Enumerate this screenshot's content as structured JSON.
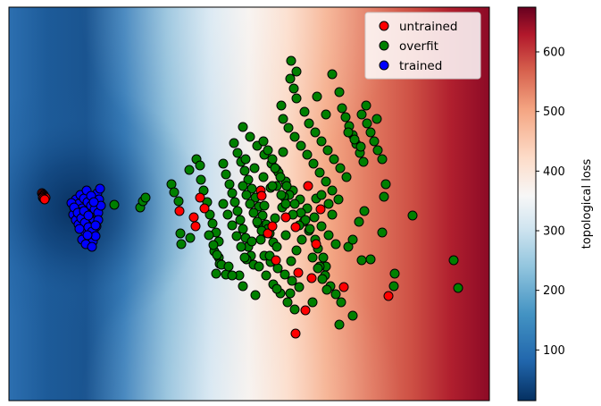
{
  "chart_data": {
    "type": "scatter",
    "title": "",
    "xlabel": "",
    "ylabel": "",
    "background": "topological loss landscape (heatmap, RdBu_r)",
    "legend": {
      "placement": "top-right",
      "entries": [
        {
          "label": "untrained",
          "color": "#ff0000"
        },
        {
          "label": "overfit",
          "color": "#008000"
        },
        {
          "label": "trained",
          "color": "#0000ff"
        }
      ]
    },
    "colorbar": {
      "label": "topological loss",
      "range": [
        15,
        675
      ],
      "ticks": [
        "100",
        "200",
        "300",
        "400",
        "500",
        "600"
      ],
      "colormap": "RdBu_r"
    },
    "axes": {
      "xlim": [
        0,
        538
      ],
      "ylim": [
        0,
        440
      ],
      "xticks": false,
      "yticks": false
    },
    "series": [
      {
        "name": "untrained",
        "color": "#ff0000",
        "points": [
          [
            37,
            208
          ],
          [
            38,
            209
          ],
          [
            39,
            210
          ],
          [
            39,
            211
          ],
          [
            40,
            212
          ],
          [
            41,
            213
          ],
          [
            38,
            213
          ],
          [
            39,
            214
          ],
          [
            40,
            215
          ],
          [
            191,
            228
          ],
          [
            207,
            235
          ],
          [
            209,
            245
          ],
          [
            214,
            213
          ],
          [
            219,
            225
          ],
          [
            282,
            205
          ],
          [
            283,
            211
          ],
          [
            290,
            253
          ],
          [
            295,
            245
          ],
          [
            299,
            283
          ],
          [
            310,
            235
          ],
          [
            321,
            246
          ],
          [
            335,
            200
          ],
          [
            344,
            265
          ],
          [
            339,
            303
          ],
          [
            349,
            226
          ],
          [
            324,
            297
          ],
          [
            332,
            339
          ],
          [
            321,
            365
          ],
          [
            375,
            313
          ],
          [
            425,
            323
          ]
        ]
      },
      {
        "name": "overfit",
        "color": "#008000",
        "points": [
          [
            118,
            221
          ],
          [
            147,
            224
          ],
          [
            150,
            217
          ],
          [
            153,
            213
          ],
          [
            182,
            198
          ],
          [
            185,
            207
          ],
          [
            190,
            217
          ],
          [
            202,
            182
          ],
          [
            192,
            253
          ],
          [
            193,
            265
          ],
          [
            203,
            258
          ],
          [
            210,
            170
          ],
          [
            214,
            177
          ],
          [
            215,
            193
          ],
          [
            218,
            205
          ],
          [
            222,
            218
          ],
          [
            225,
            232
          ],
          [
            228,
            242
          ],
          [
            232,
            252
          ],
          [
            235,
            262
          ],
          [
            230,
            273
          ],
          [
            235,
            280
          ],
          [
            236,
            287
          ],
          [
            232,
            298
          ],
          [
            240,
            175
          ],
          [
            243,
            187
          ],
          [
            247,
            198
          ],
          [
            250,
            208
          ],
          [
            253,
            218
          ],
          [
            256,
            228
          ],
          [
            259,
            238
          ],
          [
            262,
            248
          ],
          [
            265,
            258
          ],
          [
            268,
            268
          ],
          [
            271,
            278
          ],
          [
            274,
            288
          ],
          [
            252,
            152
          ],
          [
            256,
            163
          ],
          [
            260,
            173
          ],
          [
            264,
            183
          ],
          [
            268,
            193
          ],
          [
            272,
            203
          ],
          [
            276,
            213
          ],
          [
            280,
            223
          ],
          [
            284,
            233
          ],
          [
            288,
            243
          ],
          [
            292,
            253
          ],
          [
            296,
            263
          ],
          [
            258,
            300
          ],
          [
            266,
            282
          ],
          [
            272,
            262
          ],
          [
            279,
            242
          ],
          [
            286,
            222
          ],
          [
            293,
            202
          ],
          [
            300,
            182
          ],
          [
            307,
            162
          ],
          [
            262,
            134
          ],
          [
            270,
            145
          ],
          [
            278,
            155
          ],
          [
            286,
            165
          ],
          [
            294,
            175
          ],
          [
            302,
            185
          ],
          [
            310,
            195
          ],
          [
            318,
            205
          ],
          [
            326,
            215
          ],
          [
            334,
            225
          ],
          [
            342,
            235
          ],
          [
            350,
            245
          ],
          [
            358,
            255
          ],
          [
            366,
            265
          ],
          [
            285,
            150
          ],
          [
            290,
            160
          ],
          [
            295,
            170
          ],
          [
            298,
            180
          ],
          [
            304,
            190
          ],
          [
            311,
            200
          ],
          [
            314,
            210
          ],
          [
            320,
            220
          ],
          [
            327,
            230
          ],
          [
            330,
            240
          ],
          [
            336,
            250
          ],
          [
            343,
            260
          ],
          [
            346,
            270
          ],
          [
            352,
            280
          ],
          [
            355,
            290
          ],
          [
            280,
            290
          ],
          [
            288,
            300
          ],
          [
            296,
            310
          ],
          [
            304,
            320
          ],
          [
            312,
            330
          ],
          [
            320,
            338
          ],
          [
            286,
            278
          ],
          [
            293,
            285
          ],
          [
            301,
            292
          ],
          [
            309,
            299
          ],
          [
            317,
            306
          ],
          [
            325,
            313
          ],
          [
            315,
            80
          ],
          [
            319,
            91
          ],
          [
            322,
            102
          ],
          [
            316,
            60
          ],
          [
            322,
            72
          ],
          [
            305,
            110
          ],
          [
            307,
            125
          ],
          [
            313,
            135
          ],
          [
            320,
            145
          ],
          [
            327,
            155
          ],
          [
            334,
            165
          ],
          [
            341,
            175
          ],
          [
            348,
            185
          ],
          [
            355,
            195
          ],
          [
            362,
            205
          ],
          [
            369,
            215
          ],
          [
            331,
            117
          ],
          [
            336,
            130
          ],
          [
            343,
            140
          ],
          [
            350,
            150
          ],
          [
            357,
            160
          ],
          [
            364,
            170
          ],
          [
            371,
            180
          ],
          [
            378,
            190
          ],
          [
            362,
            75
          ],
          [
            373,
            113
          ],
          [
            377,
            123
          ],
          [
            381,
            133
          ],
          [
            385,
            143
          ],
          [
            389,
            153
          ],
          [
            393,
            163
          ],
          [
            397,
            173
          ],
          [
            401,
            130
          ],
          [
            405,
            140
          ],
          [
            409,
            150
          ],
          [
            413,
            160
          ],
          [
            418,
            170
          ],
          [
            395,
            120
          ],
          [
            400,
            110
          ],
          [
            412,
            125
          ],
          [
            348,
            290
          ],
          [
            354,
            300
          ],
          [
            360,
            312
          ],
          [
            366,
            321
          ],
          [
            372,
            330
          ],
          [
            380,
            268
          ],
          [
            385,
            260
          ],
          [
            392,
            240
          ],
          [
            398,
            228
          ],
          [
            405,
            282
          ],
          [
            395,
            283
          ],
          [
            418,
            252
          ],
          [
            420,
            212
          ],
          [
            422,
            198
          ],
          [
            432,
            298
          ],
          [
            452,
            233
          ],
          [
            431,
            312
          ],
          [
            498,
            283
          ],
          [
            503,
            314
          ],
          [
            385,
            345
          ],
          [
            370,
            355
          ],
          [
            340,
            330
          ],
          [
            315,
            320
          ],
          [
            300,
            315
          ],
          [
            344,
            214
          ],
          [
            332,
            238
          ],
          [
            337,
            248
          ],
          [
            328,
            260
          ],
          [
            322,
            272
          ],
          [
            316,
            284
          ],
          [
            240,
            220
          ],
          [
            245,
            232
          ],
          [
            250,
            244
          ],
          [
            255,
            256
          ],
          [
            260,
            268
          ],
          [
            264,
            280
          ],
          [
            300,
            200
          ],
          [
            308,
            212
          ],
          [
            306,
            224
          ],
          [
            298,
            236
          ],
          [
            290,
            248
          ],
          [
            282,
            260
          ],
          [
            355,
            120
          ],
          [
            345,
            100
          ],
          [
            370,
            95
          ],
          [
            380,
            140
          ],
          [
            387,
            148
          ],
          [
            394,
            156
          ],
          [
            358,
            220
          ],
          [
            362,
            232
          ],
          [
            350,
            210
          ],
          [
            274,
            230
          ],
          [
            278,
            240
          ],
          [
            283,
            250
          ],
          [
            270,
            220
          ],
          [
            266,
            210
          ],
          [
            262,
            200
          ],
          [
            224,
            255
          ],
          [
            229,
            266
          ],
          [
            233,
            277
          ],
          [
            238,
            288
          ],
          [
            243,
            299
          ],
          [
            265,
            170
          ],
          [
            275,
            180
          ],
          [
            285,
            190
          ],
          [
            295,
            200
          ],
          [
            305,
            210
          ],
          [
            310,
            220
          ],
          [
            318,
            232
          ],
          [
            325,
            244
          ],
          [
            310,
            255
          ],
          [
            300,
            268
          ],
          [
            292,
            278
          ],
          [
            246,
            290
          ],
          [
            250,
            300
          ],
          [
            262,
            312
          ],
          [
            276,
            322
          ],
          [
            340,
            280
          ],
          [
            346,
            292
          ],
          [
            351,
            304
          ],
          [
            356,
            316
          ]
        ]
      },
      {
        "name": "trained",
        "color": "#0000ff",
        "points": [
          [
            75,
            215
          ],
          [
            78,
            220
          ],
          [
            82,
            225
          ],
          [
            86,
            230
          ],
          [
            90,
            235
          ],
          [
            94,
            240
          ],
          [
            98,
            245
          ],
          [
            80,
            210
          ],
          [
            84,
            214
          ],
          [
            88,
            218
          ],
          [
            92,
            222
          ],
          [
            96,
            226
          ],
          [
            100,
            230
          ],
          [
            76,
            228
          ],
          [
            79,
            233
          ],
          [
            83,
            238
          ],
          [
            87,
            243
          ],
          [
            91,
            248
          ],
          [
            95,
            252
          ],
          [
            72,
            232
          ],
          [
            75,
            238
          ],
          [
            78,
            243
          ],
          [
            82,
            248
          ],
          [
            86,
            253
          ],
          [
            90,
            258
          ],
          [
            94,
            262
          ],
          [
            99,
            208
          ],
          [
            102,
            203
          ],
          [
            87,
            205
          ],
          [
            92,
            211
          ],
          [
            70,
            219
          ],
          [
            73,
            224
          ],
          [
            77,
            230
          ],
          [
            81,
            236
          ],
          [
            85,
            241
          ],
          [
            89,
            246
          ],
          [
            93,
            251
          ],
          [
            97,
            256
          ],
          [
            101,
            215
          ],
          [
            103,
            222
          ],
          [
            100,
            238
          ],
          [
            97,
            244
          ],
          [
            82,
            260
          ],
          [
            86,
            265
          ],
          [
            93,
            268
          ],
          [
            88,
            255
          ],
          [
            79,
            248
          ],
          [
            84,
            228
          ],
          [
            89,
            233
          ],
          [
            95,
            218
          ]
        ]
      }
    ]
  }
}
